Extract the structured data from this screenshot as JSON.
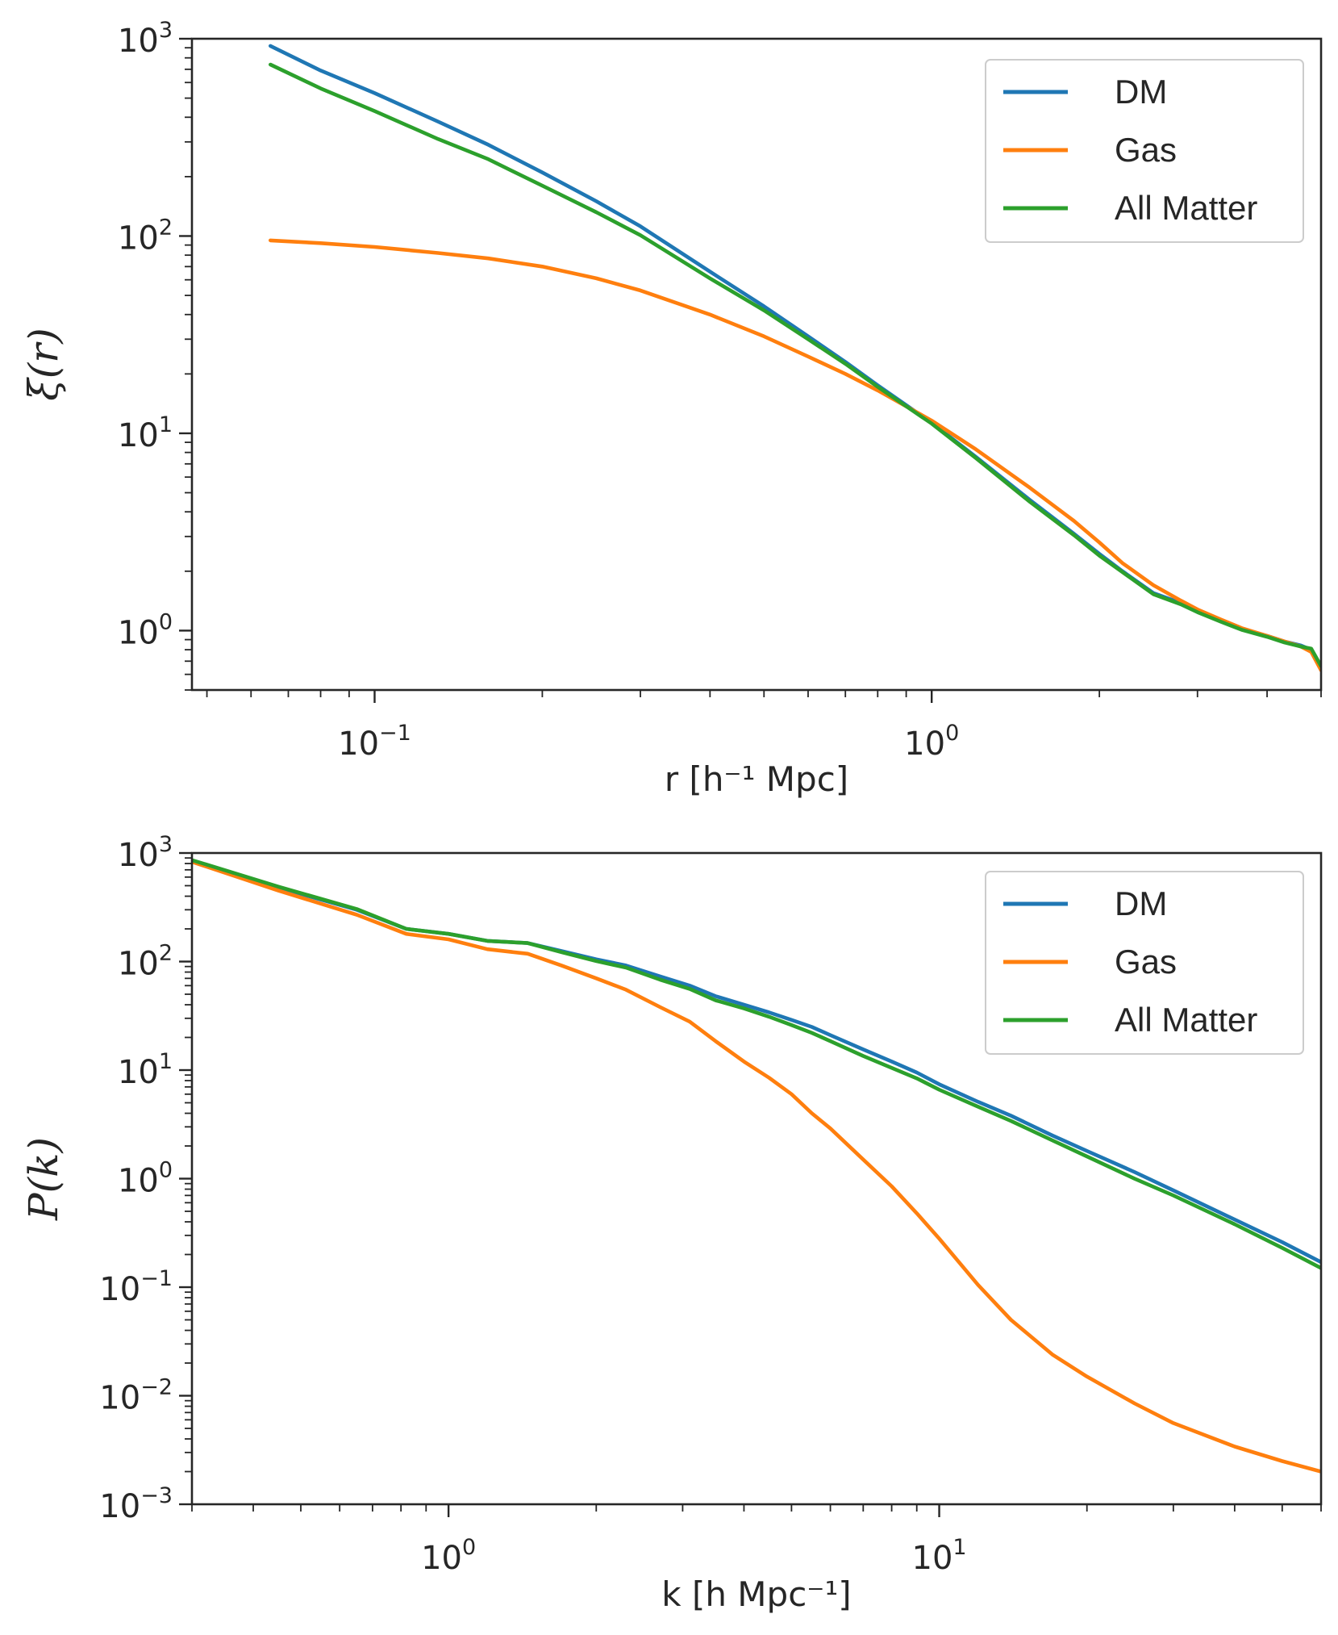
{
  "chart_data": [
    {
      "type": "line",
      "xscale": "log",
      "yscale": "log",
      "xlim": [
        0.047,
        5.0
      ],
      "ylim": [
        0.5,
        1000
      ],
      "xlabel": "r [h⁻¹ Mpc]",
      "ylabel": "ξ(r)",
      "xticks": [
        {
          "value": 0.1,
          "base": "10",
          "exp": "−1"
        },
        {
          "value": 1,
          "base": "10",
          "exp": "0"
        }
      ],
      "yticks": [
        {
          "value": 1,
          "base": "10",
          "exp": "0"
        },
        {
          "value": 10,
          "base": "10",
          "exp": "1"
        },
        {
          "value": 100,
          "base": "10",
          "exp": "2"
        },
        {
          "value": 1000,
          "base": "10",
          "exp": "3"
        }
      ],
      "legend": "top-right",
      "grid": false,
      "series": [
        {
          "name": "DM",
          "color": "#1f77b4",
          "x": [
            0.065,
            0.08,
            0.1,
            0.13,
            0.16,
            0.2,
            0.25,
            0.3,
            0.4,
            0.5,
            0.6,
            0.7,
            0.8,
            1.0,
            1.2,
            1.5,
            1.8,
            2.0,
            2.2,
            2.5,
            2.8,
            3.0,
            3.3,
            3.6,
            4.0,
            4.3,
            4.6,
            4.8,
            5.0
          ],
          "y": [
            920,
            690,
            530,
            380,
            290,
            210,
            150,
            112,
            66,
            44,
            31,
            23,
            17.5,
            11.3,
            7.6,
            4.6,
            3.1,
            2.45,
            2.0,
            1.55,
            1.38,
            1.25,
            1.12,
            1.02,
            0.94,
            0.88,
            0.84,
            0.8,
            0.66
          ]
        },
        {
          "name": "Gas",
          "color": "#ff7f0e",
          "x": [
            0.065,
            0.08,
            0.1,
            0.13,
            0.16,
            0.2,
            0.25,
            0.3,
            0.4,
            0.5,
            0.6,
            0.7,
            0.8,
            1.0,
            1.2,
            1.5,
            1.8,
            2.0,
            2.2,
            2.5,
            2.8,
            3.0,
            3.3,
            3.6,
            4.0,
            4.3,
            4.6,
            4.8,
            5.0
          ],
          "y": [
            95,
            92,
            88,
            82,
            77,
            70,
            61,
            53,
            40,
            31,
            24.5,
            20,
            16.5,
            11.6,
            8.3,
            5.3,
            3.6,
            2.8,
            2.2,
            1.7,
            1.42,
            1.28,
            1.14,
            1.03,
            0.94,
            0.88,
            0.83,
            0.78,
            0.63
          ]
        },
        {
          "name": "All Matter",
          "color": "#2ca02c",
          "x": [
            0.065,
            0.08,
            0.1,
            0.13,
            0.16,
            0.2,
            0.25,
            0.3,
            0.4,
            0.5,
            0.6,
            0.7,
            0.8,
            1.0,
            1.2,
            1.5,
            1.8,
            2.0,
            2.2,
            2.5,
            2.8,
            3.0,
            3.3,
            3.6,
            4.0,
            4.3,
            4.6,
            4.8,
            5.0
          ],
          "y": [
            740,
            560,
            430,
            310,
            245,
            180,
            132,
            101,
            61,
            42,
            30,
            22.5,
            17.2,
            11.2,
            7.5,
            4.5,
            3.05,
            2.4,
            1.98,
            1.53,
            1.36,
            1.24,
            1.11,
            1.01,
            0.93,
            0.87,
            0.83,
            0.81,
            0.66
          ]
        }
      ]
    },
    {
      "type": "line",
      "xscale": "log",
      "yscale": "log",
      "xlim": [
        0.3,
        60
      ],
      "ylim": [
        0.001,
        1000
      ],
      "xlabel": "k [h Mpc⁻¹]",
      "ylabel": "P(k)",
      "xticks": [
        {
          "value": 1,
          "base": "10",
          "exp": "0"
        },
        {
          "value": 10,
          "base": "10",
          "exp": "1"
        }
      ],
      "yticks": [
        {
          "value": 0.001,
          "base": "10",
          "exp": "−3"
        },
        {
          "value": 0.01,
          "base": "10",
          "exp": "−2"
        },
        {
          "value": 0.1,
          "base": "10",
          "exp": "−1"
        },
        {
          "value": 1,
          "base": "10",
          "exp": "0"
        },
        {
          "value": 10,
          "base": "10",
          "exp": "1"
        },
        {
          "value": 100,
          "base": "10",
          "exp": "2"
        },
        {
          "value": 1000,
          "base": "10",
          "exp": "3"
        }
      ],
      "legend": "top-right",
      "grid": false,
      "series": [
        {
          "name": "DM",
          "color": "#1f77b4",
          "x": [
            0.3,
            0.45,
            0.65,
            0.82,
            1.0,
            1.2,
            1.45,
            1.7,
            2.0,
            2.3,
            2.7,
            3.1,
            3.5,
            4.0,
            4.5,
            5.0,
            5.5,
            6.0,
            7.0,
            8.0,
            9.0,
            10.0,
            12.0,
            14.0,
            17.0,
            20.0,
            25.0,
            30.0,
            40.0,
            50.0,
            60.0
          ],
          "y": [
            850,
            480,
            300,
            200,
            180,
            155,
            148,
            125,
            105,
            92,
            73,
            60,
            48,
            40,
            34,
            29,
            25,
            21,
            15.5,
            12,
            9.5,
            7.4,
            5.1,
            3.8,
            2.5,
            1.8,
            1.15,
            0.78,
            0.42,
            0.26,
            0.17
          ]
        },
        {
          "name": "Gas",
          "color": "#ff7f0e",
          "x": [
            0.3,
            0.45,
            0.65,
            0.82,
            1.0,
            1.2,
            1.45,
            1.7,
            2.0,
            2.3,
            2.7,
            3.1,
            3.5,
            4.0,
            4.5,
            5.0,
            5.5,
            6.0,
            7.0,
            8.0,
            9.0,
            10.0,
            12.0,
            14.0,
            17.0,
            20.0,
            25.0,
            30.0,
            40.0,
            50.0,
            60.0
          ],
          "y": [
            830,
            450,
            270,
            180,
            160,
            130,
            118,
            92,
            70,
            55,
            38,
            28,
            18.5,
            12,
            8.5,
            6.0,
            4.0,
            2.9,
            1.5,
            0.85,
            0.48,
            0.28,
            0.105,
            0.05,
            0.024,
            0.015,
            0.0085,
            0.0056,
            0.0034,
            0.0025,
            0.002
          ]
        },
        {
          "name": "All Matter",
          "color": "#2ca02c",
          "x": [
            0.3,
            0.45,
            0.65,
            0.82,
            1.0,
            1.2,
            1.45,
            1.7,
            2.0,
            2.3,
            2.7,
            3.1,
            3.5,
            4.0,
            4.5,
            5.0,
            5.5,
            6.0,
            7.0,
            8.0,
            9.0,
            10.0,
            12.0,
            14.0,
            17.0,
            20.0,
            25.0,
            30.0,
            40.0,
            50.0,
            60.0
          ],
          "y": [
            860,
            490,
            305,
            200,
            180,
            155,
            148,
            122,
            101,
            88,
            68,
            56,
            44,
            37,
            31,
            26,
            22,
            18.5,
            13.5,
            10.5,
            8.4,
            6.6,
            4.6,
            3.4,
            2.25,
            1.6,
            1.0,
            0.7,
            0.38,
            0.23,
            0.15
          ]
        }
      ]
    }
  ]
}
